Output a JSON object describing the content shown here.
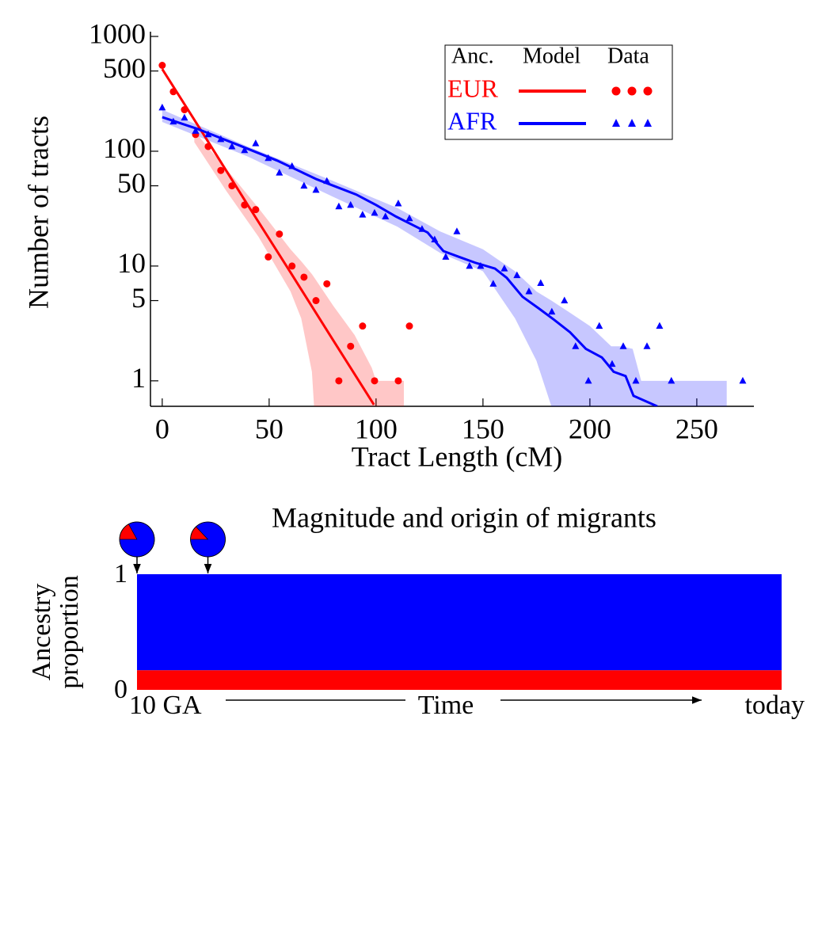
{
  "chart_data": [
    {
      "type": "log-scatter-model",
      "xlabel": "Tract Length (cM)",
      "ylabel": "Number of  tracts",
      "xlim": [
        -5.5,
        276.7
      ],
      "ylim": [
        0.6,
        1100
      ],
      "yscale": "log",
      "xticks": [
        0,
        50,
        100,
        150,
        200,
        250
      ],
      "yticks": [
        1,
        5,
        10,
        50,
        100,
        500,
        1000
      ],
      "legend": {
        "position": "upper right",
        "headers": [
          "Anc.",
          "Model",
          "Data"
        ]
      },
      "series": [
        {
          "name": "EUR",
          "color": "#ff0000",
          "marker": "circle",
          "data": {
            "x": [
              0,
              5.2,
              10.4,
              15.6,
              21.5,
              27.4,
              32.6,
              38.5,
              43.7,
              49.6,
              54.8,
              60.7,
              66.3,
              71.9,
              77,
              82.6,
              88.1,
              93.7,
              99.3,
              110.4,
              115.6
            ],
            "values": [
              560,
              330,
              230,
              140,
              110,
              68,
              50,
              34,
              31,
              12,
              19,
              10,
              8,
              5,
              7,
              1,
              2,
              3,
              1,
              1,
              3
            ]
          },
          "model": {
            "x": [
              0,
              20,
              40,
              60,
              80,
              99
            ],
            "values": [
              520,
              134,
              34,
              8.8,
              2.25,
              0.62
            ]
          },
          "band": {
            "x": [
              15,
              30,
              45,
              60,
              65,
              70,
              71,
              80,
              90,
              98,
              100,
              113
            ],
            "upper": [
              150,
              70,
              32,
              14,
              11,
              8.5,
              8,
              4.5,
              2.5,
              1.3,
              1,
              1
            ],
            "lower": [
              120,
              45,
              18,
              6,
              3.5,
              1.2,
              0.6,
              0.6,
              0.6,
              0.6,
              0.6,
              0.6
            ]
          }
        },
        {
          "name": "AFR",
          "color": "#0000ff",
          "marker": "triangle",
          "data": {
            "x": [
              0,
              5.2,
              10.4,
              15.6,
              21.5,
              27.4,
              32.6,
              38.5,
              43.7,
              49.6,
              54.8,
              60.7,
              66.3,
              71.9,
              77,
              82.6,
              88.1,
              93.7,
              99.3,
              104.4,
              110.4,
              115.6,
              121.5,
              127.4,
              132.6,
              137.8,
              143.7,
              148.9,
              154.8,
              160,
              165.9,
              171.5,
              177,
              182.2,
              188.1,
              193.3,
              199.3,
              204.4,
              210.4,
              215.6,
              221.5,
              226.7,
              232.6,
              238.1,
              271.5
            ],
            "values": [
              240,
              181,
              196,
              150,
              140,
              127,
              110,
              102,
              117,
              87,
              65,
              74,
              50,
              46,
              55,
              33,
              34,
              28,
              29,
              27,
              35,
              26,
              21,
              17,
              12,
              20,
              10,
              10,
              7,
              9.5,
              8.3,
              6,
              7.1,
              4,
              5,
              2,
              1,
              3,
              1.4,
              2,
              1,
              2,
              3,
              1,
              1
            ]
          },
          "model": {
            "x": [
              0,
              16.7,
              35.2,
              53.7,
              72.2,
              90.7,
              100,
              109.3,
              116.7,
              124.1,
              131.5,
              138.9,
              146.3,
              155.6,
              161.1,
              168.5,
              175.9,
              183.3,
              190.7,
              198.1,
              205.6,
              211.1,
              216.7,
              220.4,
              231.5
            ],
            "values": [
              198,
              156,
              114,
              83,
              57,
              42,
              34,
              27,
              23,
              19.6,
              13.5,
              12,
              10.7,
              9.5,
              7.9,
              5.4,
              4.3,
              3.4,
              2.65,
              1.9,
              1.6,
              1.2,
              1.1,
              0.74,
              0.6
            ]
          },
          "band": {
            "x": [
              0,
              40,
              80,
              110,
              130,
              150,
              165,
              175,
              182,
              190,
              200,
              210,
              215,
              220,
              224,
              225,
              264
            ],
            "upper": [
              230,
              110,
              55,
              32,
              20,
              14,
              9,
              6,
              5,
              4,
              3,
              2,
              2,
              1.9,
              1,
              1,
              1
            ],
            "lower": [
              180,
              90,
              40,
              22,
              13,
              9,
              3.5,
              1.5,
              0.6,
              0.6,
              0.6,
              0.6,
              0.6,
              0.6,
              0.6,
              0.6,
              0.6
            ]
          }
        }
      ]
    },
    {
      "type": "ancestry",
      "title": "Magnitude and origin of migrants",
      "ylabel": [
        "Ancestry",
        "proportion"
      ],
      "ylim": [
        0,
        1
      ],
      "yticks": [
        0,
        1
      ],
      "xlim": [
        10,
        0
      ],
      "start_label": "10 GA",
      "axis_label": "Time",
      "end_label": "today",
      "series": [
        {
          "color": "#ff0000",
          "values": [
            0.17
          ]
        },
        {
          "color": "#0000ff",
          "values": [
            0.83
          ]
        }
      ],
      "migrants": [
        {
          "time": 10,
          "fractions": [
            0.17,
            0.83
          ]
        },
        {
          "time": 8.9,
          "fractions": [
            0.13,
            0.87
          ]
        }
      ]
    }
  ]
}
